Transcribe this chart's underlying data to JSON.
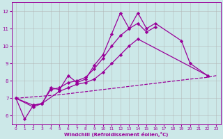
{
  "color": "#990099",
  "bg_color": "#cce8e8",
  "grid_color": "#b0b0b0",
  "xlabel": "Windchill (Refroidissement éolien,°C)",
  "xlim": [
    -0.5,
    23.5
  ],
  "ylim": [
    5.5,
    12.5
  ],
  "yticks": [
    6,
    7,
    8,
    9,
    10,
    11,
    12
  ],
  "xticks": [
    0,
    1,
    2,
    3,
    4,
    5,
    6,
    7,
    8,
    9,
    10,
    11,
    12,
    13,
    14,
    15,
    16,
    17,
    18,
    19,
    20,
    21,
    22,
    23
  ],
  "line1_x": [
    0,
    1,
    2,
    3,
    4,
    5,
    6,
    7,
    8,
    9,
    10,
    11,
    12,
    13,
    14,
    15,
    16
  ],
  "line1_y": [
    7.0,
    5.8,
    6.6,
    6.7,
    7.6,
    7.5,
    8.3,
    7.9,
    8.1,
    8.9,
    9.5,
    10.7,
    11.9,
    11.0,
    11.3,
    10.8,
    11.1
  ],
  "line2_x": [
    0,
    2,
    3,
    4,
    5,
    6,
    7,
    8,
    9,
    10,
    11,
    12,
    13,
    14,
    15,
    16,
    19,
    20,
    22
  ],
  "line2_y": [
    7.0,
    6.6,
    6.7,
    7.5,
    7.6,
    7.9,
    8.0,
    8.2,
    8.7,
    9.3,
    10.0,
    10.6,
    11.0,
    11.9,
    11.0,
    11.3,
    10.3,
    9.0,
    8.3
  ],
  "line3_x": [
    0,
    2,
    3,
    5,
    6,
    7,
    8,
    9,
    10,
    11,
    12,
    13,
    14,
    22
  ],
  "line3_y": [
    7.0,
    6.5,
    6.7,
    7.4,
    7.6,
    7.8,
    7.9,
    8.1,
    8.5,
    9.0,
    9.5,
    10.0,
    10.4,
    8.3
  ],
  "line4_x": [
    0,
    5,
    10,
    15,
    20,
    22,
    23
  ],
  "line4_y": [
    7.0,
    7.2,
    7.5,
    7.8,
    8.1,
    8.2,
    8.3
  ],
  "marker": "D",
  "markersize": 2.2,
  "linewidth": 0.9
}
